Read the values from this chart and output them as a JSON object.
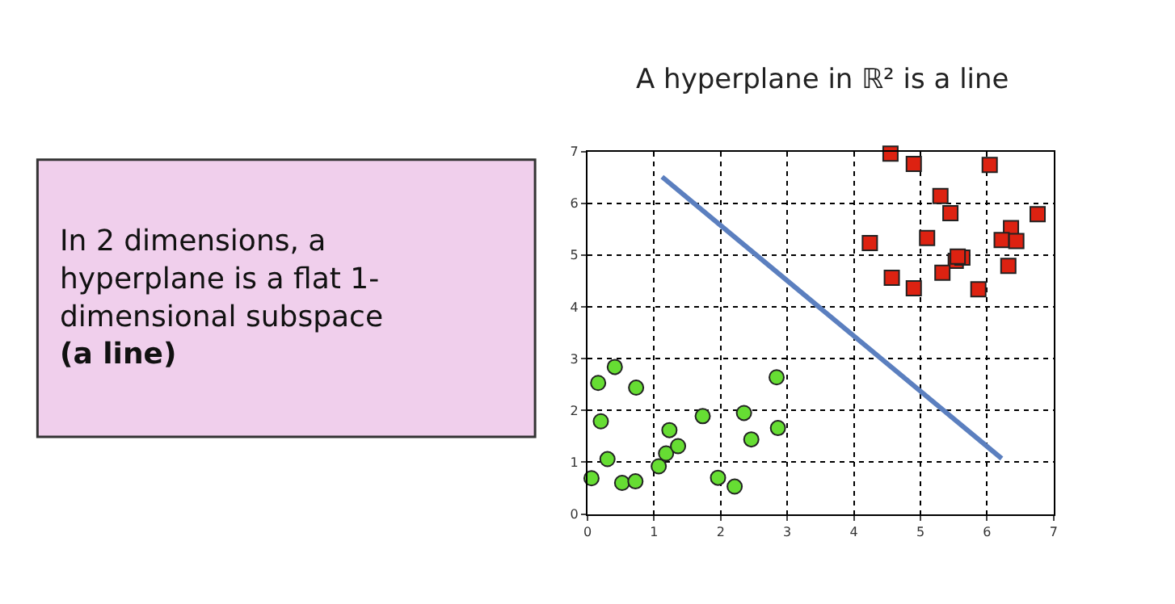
{
  "chart_data": {
    "type": "scatter",
    "title": "A hyperplane in ℝ² is a line",
    "annotations": [
      "In 2 dimensions, a hyperplane is a flat 1-dimensional subspace",
      "(a line)"
    ],
    "xlim": [
      0,
      7
    ],
    "ylim": [
      0,
      7
    ],
    "xticks": [
      0,
      1,
      2,
      3,
      4,
      5,
      6,
      7
    ],
    "yticks": [
      0,
      1,
      2,
      3,
      4,
      5,
      6,
      7
    ],
    "grid": true,
    "series": [
      {
        "marker": "square",
        "color": "#dd2211",
        "x": [
          4.55,
          4.9,
          6.04,
          5.3,
          5.45,
          6.76,
          4.24,
          5.1,
          6.36,
          6.22,
          6.44,
          5.53,
          5.63,
          5.56,
          5.33,
          6.32,
          4.57,
          4.9,
          5.87
        ],
        "values": [
          6.96,
          6.76,
          6.74,
          6.14,
          5.81,
          5.79,
          5.23,
          5.33,
          5.52,
          5.29,
          5.27,
          4.89,
          4.95,
          4.97,
          4.66,
          4.79,
          4.56,
          4.36,
          4.34
        ]
      },
      {
        "marker": "circle",
        "color": "#66dd33",
        "x": [
          0.06,
          0.16,
          0.41,
          0.2,
          0.3,
          0.52,
          0.72,
          0.73,
          1.07,
          1.18,
          1.23,
          1.36,
          1.73,
          1.96,
          2.21,
          2.35,
          2.46,
          2.84,
          2.86
        ],
        "values": [
          0.69,
          2.53,
          2.84,
          1.79,
          1.06,
          0.6,
          0.63,
          2.44,
          0.92,
          1.17,
          1.62,
          1.31,
          1.89,
          0.7,
          0.53,
          1.95,
          1.44,
          2.64,
          1.66
        ]
      },
      {
        "type": "line",
        "marker": "none",
        "line_style": "solid",
        "color": "#5b7fbf",
        "x": [
          1.12,
          6.22
        ],
        "values": [
          6.51,
          1.07
        ]
      }
    ]
  }
}
